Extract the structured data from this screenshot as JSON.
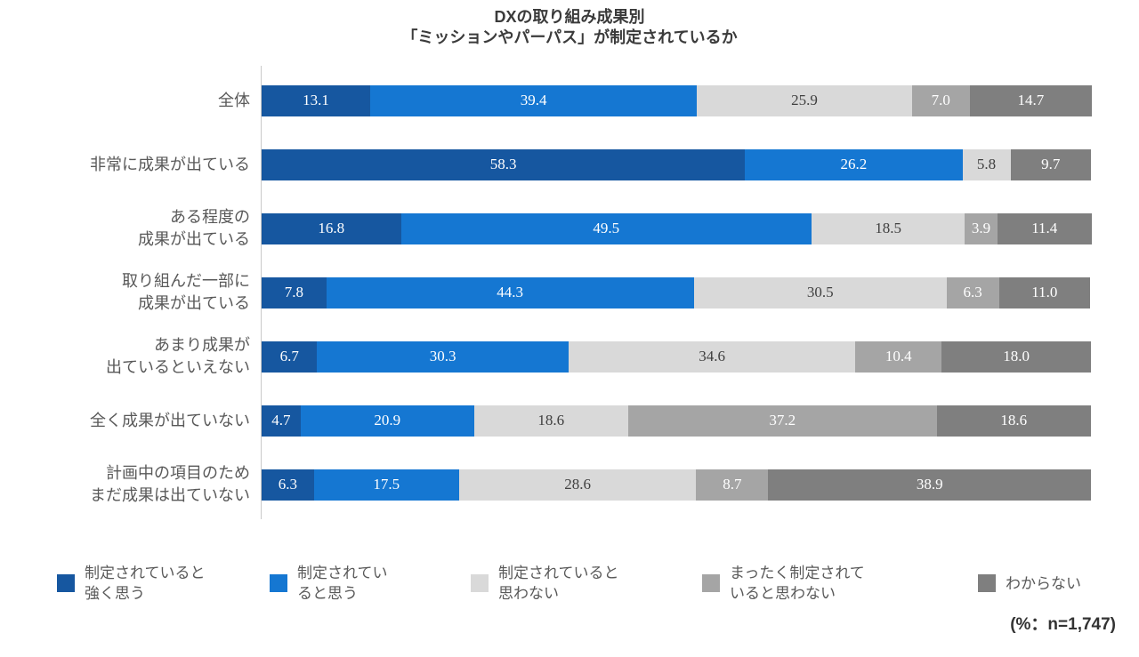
{
  "page": {
    "title_line1": "DXの取り組み成果別",
    "title_line2": "「ミッションやパーパス」が制定されているか",
    "note": "(%：n=1,747)"
  },
  "chart_data": {
    "type": "bar",
    "variant": "horizontal-stacked",
    "title": "DXの取り組み成果別「ミッションやパーパス」が制定されているか",
    "unit": "%",
    "sample_size": "n=1,747",
    "xlim": [
      0,
      100
    ],
    "grid": false,
    "legend_position": "bottom",
    "categories": [
      "全体",
      "非常に成果が出ている",
      "ある程度の\n成果が出ている",
      "取り組んだ一部に\n成果が出ている",
      "あまり成果が\n出ているといえない",
      "全く成果が出ていない",
      "計画中の項目のため\nまだ成果は出ていない"
    ],
    "series": [
      {
        "name": "制定されていると強く思う",
        "legend_label": "制定されていると\n強く思う",
        "color": "#1657A0",
        "text_color": "#FFFFFF",
        "values": [
          13.1,
          58.3,
          16.8,
          7.8,
          6.7,
          4.7,
          6.3
        ]
      },
      {
        "name": "制定されていると思う",
        "legend_label": "制定されてい\nると思う",
        "color": "#1577D2",
        "text_color": "#FFFFFF",
        "values": [
          39.4,
          26.2,
          49.5,
          44.3,
          30.3,
          20.9,
          17.5
        ]
      },
      {
        "name": "制定されていると思わない",
        "legend_label": "制定されていると\n思わない",
        "color": "#D9D9D9",
        "text_color": "#404040",
        "values": [
          25.9,
          5.8,
          18.5,
          30.5,
          34.6,
          18.6,
          28.6
        ]
      },
      {
        "name": "まったく制定されていると思わない",
        "legend_label": "まったく制定されて\nいると思わない",
        "color": "#A5A5A5",
        "text_color": "#FFFFFF",
        "values": [
          7.0,
          0.0,
          3.9,
          6.3,
          10.4,
          37.2,
          8.7
        ]
      },
      {
        "name": "わからない",
        "legend_label": "わからない",
        "color": "#7F7F7F",
        "text_color": "#FFFFFF",
        "values": [
          14.7,
          9.7,
          11.4,
          11.0,
          18.0,
          18.6,
          38.9
        ]
      }
    ]
  }
}
